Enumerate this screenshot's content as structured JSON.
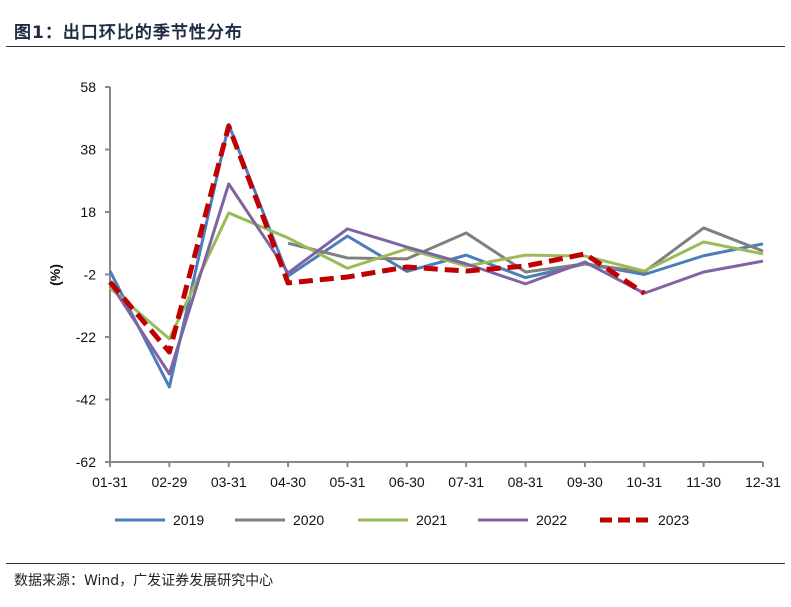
{
  "title": "图1：出口环比的季节性分布",
  "source": "数据来源：Wind，广发证券发展研究中心",
  "chart_data": {
    "type": "line",
    "title": "图1：出口环比的季节性分布",
    "ylabel": "(%)",
    "xlabel": "",
    "ylim": [
      -62,
      58
    ],
    "yticks": [
      58,
      38,
      18,
      -2,
      -22,
      -42,
      -62
    ],
    "categories": [
      "01-31",
      "02-29",
      "03-31",
      "04-30",
      "05-31",
      "06-30",
      "07-31",
      "08-31",
      "09-30",
      "10-31",
      "11-30",
      "12-31"
    ],
    "legend_position": "bottom",
    "series": [
      {
        "name": "2019",
        "color": "#4a7ebb",
        "dashed": false,
        "values": [
          -0.9,
          -38,
          46,
          -2.5,
          10.3,
          -1,
          4.2,
          -3,
          1.4,
          -2,
          4,
          7.8
        ]
      },
      {
        "name": "2020",
        "color": "#808080",
        "dashed": false,
        "values": [
          null,
          null,
          null,
          8,
          3.3,
          3,
          11.3,
          -1.2,
          1.4,
          -1.2,
          12.9,
          5.5
        ]
      },
      {
        "name": "2021",
        "color": "#9bbb59",
        "dashed": false,
        "values": [
          -6.3,
          -22.6,
          17.7,
          9.7,
          0,
          6.2,
          0.7,
          4.2,
          3.9,
          -0.9,
          8.4,
          4.6
        ]
      },
      {
        "name": "2022",
        "color": "#8064a2",
        "dashed": false,
        "values": [
          -4.7,
          -33.8,
          27,
          -1.5,
          12.6,
          6.8,
          1.4,
          -5,
          2,
          -8,
          -1.2,
          2.3
        ]
      },
      {
        "name": "2023",
        "color": "#c00000",
        "dashed": true,
        "values": [
          -4.4,
          -26.8,
          45.5,
          -4.7,
          -2.8,
          0.4,
          -0.9,
          0.7,
          4.6,
          -8,
          null,
          null
        ]
      }
    ]
  }
}
